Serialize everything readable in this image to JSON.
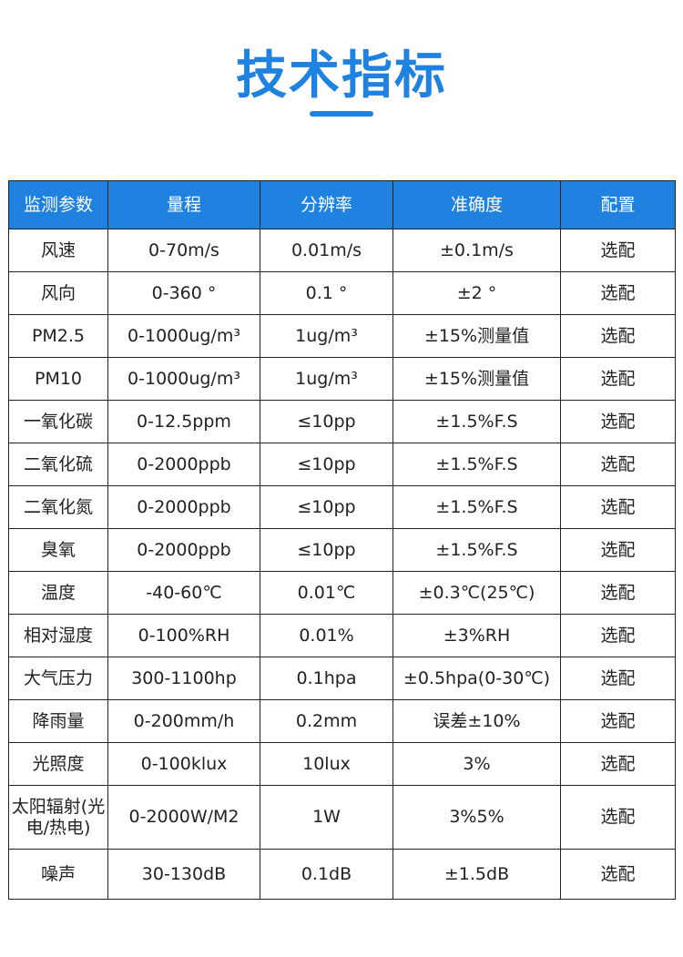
{
  "title": "技术指标",
  "accent_color": "#1f82e0",
  "table": {
    "headers": [
      "监测参数",
      "量程",
      "分辨率",
      "准确度",
      "配置"
    ],
    "rows": [
      [
        "风速",
        "0-70m/s",
        "0.01m/s",
        "±0.1m/s",
        "选配"
      ],
      [
        "风向",
        "0-360 °",
        "0.1 °",
        "±2 °",
        "选配"
      ],
      [
        "PM2.5",
        "0-1000ug/m³",
        "1ug/m³",
        "±15%测量值",
        "选配"
      ],
      [
        "PM10",
        "0-1000ug/m³",
        "1ug/m³",
        "±15%测量值",
        "选配"
      ],
      [
        "一氧化碳",
        "0-12.5ppm",
        "≤10pp",
        "±1.5%F.S",
        "选配"
      ],
      [
        "二氧化硫",
        "0-2000ppb",
        "≤10pp",
        "±1.5%F.S",
        "选配"
      ],
      [
        "二氧化氮",
        "0-2000ppb",
        "≤10pp",
        "±1.5%F.S",
        "选配"
      ],
      [
        "臭氧",
        "0-2000ppb",
        "≤10pp",
        "±1.5%F.S",
        "选配"
      ],
      [
        "温度",
        "-40-60℃",
        "0.01℃",
        "±0.3℃(25℃)",
        "选配"
      ],
      [
        "相对湿度",
        "0-100%RH",
        "0.01%",
        "±3%RH",
        "选配"
      ],
      [
        "大气压力",
        "300-1100hp",
        "0.1hpa",
        "±0.5hpa(0-30℃)",
        "选配"
      ],
      [
        "降雨量",
        "0-200mm/h",
        "0.2mm",
        "误差±10%",
        "选配"
      ],
      [
        "光照度",
        "0-100klux",
        "10lux",
        "3%",
        "选配"
      ],
      [
        "太阳辐射(光电/热电)",
        "0-2000W/M2",
        "1W",
        "3%5%",
        "选配"
      ],
      [
        "噪声",
        "30-130dB",
        "0.1dB",
        "±1.5dB",
        "选配"
      ]
    ]
  }
}
